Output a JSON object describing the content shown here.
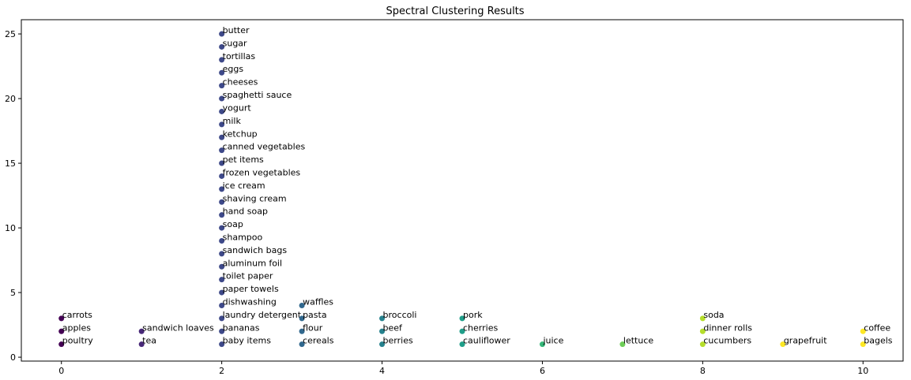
{
  "chart_data": {
    "type": "scatter",
    "title": "Spectral Clustering Results",
    "xlabel": "",
    "ylabel": "",
    "xlim": [
      -0.5,
      10.5
    ],
    "ylim": [
      -0.3,
      26.1
    ],
    "xticks": [
      0,
      2,
      4,
      6,
      8,
      10
    ],
    "yticks": [
      0,
      5,
      10,
      15,
      20,
      25
    ],
    "grid": false,
    "cluster_colors": [
      "#440154",
      "#482878",
      "#3e4989",
      "#31688e",
      "#26828e",
      "#1f9e89",
      "#35b779",
      "#6ece58",
      "#b5de2b",
      "#fde725"
    ],
    "points": [
      {
        "label": "poultry",
        "x": 0,
        "y": 1,
        "cluster": 0
      },
      {
        "label": "apples",
        "x": 0,
        "y": 2,
        "cluster": 0
      },
      {
        "label": "carrots",
        "x": 0,
        "y": 3,
        "cluster": 0
      },
      {
        "label": "tea",
        "x": 1,
        "y": 1,
        "cluster": 1
      },
      {
        "label": "sandwich loaves",
        "x": 1,
        "y": 2,
        "cluster": 1
      },
      {
        "label": "baby items",
        "x": 2,
        "y": 1,
        "cluster": 2
      },
      {
        "label": "bananas",
        "x": 2,
        "y": 2,
        "cluster": 2
      },
      {
        "label": "laundry detergent",
        "x": 2,
        "y": 3,
        "cluster": 2
      },
      {
        "label": "dishwashing",
        "x": 2,
        "y": 4,
        "cluster": 2
      },
      {
        "label": "paper towels",
        "x": 2,
        "y": 5,
        "cluster": 2
      },
      {
        "label": "toilet paper",
        "x": 2,
        "y": 6,
        "cluster": 2
      },
      {
        "label": "aluminum foil",
        "x": 2,
        "y": 7,
        "cluster": 2
      },
      {
        "label": "sandwich bags",
        "x": 2,
        "y": 8,
        "cluster": 2
      },
      {
        "label": "shampoo",
        "x": 2,
        "y": 9,
        "cluster": 2
      },
      {
        "label": "soap",
        "x": 2,
        "y": 10,
        "cluster": 2
      },
      {
        "label": "hand soap",
        "x": 2,
        "y": 11,
        "cluster": 2
      },
      {
        "label": "shaving cream",
        "x": 2,
        "y": 12,
        "cluster": 2
      },
      {
        "label": "ice cream",
        "x": 2,
        "y": 13,
        "cluster": 2
      },
      {
        "label": "frozen vegetables",
        "x": 2,
        "y": 14,
        "cluster": 2
      },
      {
        "label": "pet items",
        "x": 2,
        "y": 15,
        "cluster": 2
      },
      {
        "label": "canned vegetables",
        "x": 2,
        "y": 16,
        "cluster": 2
      },
      {
        "label": "ketchup",
        "x": 2,
        "y": 17,
        "cluster": 2
      },
      {
        "label": "milk",
        "x": 2,
        "y": 18,
        "cluster": 2
      },
      {
        "label": "yogurt",
        "x": 2,
        "y": 19,
        "cluster": 2
      },
      {
        "label": "spaghetti sauce",
        "x": 2,
        "y": 20,
        "cluster": 2
      },
      {
        "label": "cheeses",
        "x": 2,
        "y": 21,
        "cluster": 2
      },
      {
        "label": "eggs",
        "x": 2,
        "y": 22,
        "cluster": 2
      },
      {
        "label": "tortillas",
        "x": 2,
        "y": 23,
        "cluster": 2
      },
      {
        "label": "sugar",
        "x": 2,
        "y": 24,
        "cluster": 2
      },
      {
        "label": "butter",
        "x": 2,
        "y": 25,
        "cluster": 2
      },
      {
        "label": "cereals",
        "x": 3,
        "y": 1,
        "cluster": 3
      },
      {
        "label": "flour",
        "x": 3,
        "y": 2,
        "cluster": 3
      },
      {
        "label": "pasta",
        "x": 3,
        "y": 3,
        "cluster": 3
      },
      {
        "label": "waffles",
        "x": 3,
        "y": 4,
        "cluster": 3
      },
      {
        "label": "berries",
        "x": 4,
        "y": 1,
        "cluster": 4
      },
      {
        "label": "beef",
        "x": 4,
        "y": 2,
        "cluster": 4
      },
      {
        "label": "broccoli",
        "x": 4,
        "y": 3,
        "cluster": 4
      },
      {
        "label": "cauliflower",
        "x": 5,
        "y": 1,
        "cluster": 5
      },
      {
        "label": "cherries",
        "x": 5,
        "y": 2,
        "cluster": 5
      },
      {
        "label": "pork",
        "x": 5,
        "y": 3,
        "cluster": 5
      },
      {
        "label": "juice",
        "x": 6,
        "y": 1,
        "cluster": 6
      },
      {
        "label": "lettuce",
        "x": 7,
        "y": 1,
        "cluster": 7
      },
      {
        "label": "cucumbers",
        "x": 8,
        "y": 1,
        "cluster": 8
      },
      {
        "label": "dinner rolls",
        "x": 8,
        "y": 2,
        "cluster": 8
      },
      {
        "label": "soda",
        "x": 8,
        "y": 3,
        "cluster": 8
      },
      {
        "label": "grapefruit",
        "x": 9,
        "y": 1,
        "cluster": 9
      },
      {
        "label": "bagels",
        "x": 10,
        "y": 1,
        "cluster": 10
      },
      {
        "label": "coffee",
        "x": 10,
        "y": 2,
        "cluster": 10
      }
    ]
  }
}
